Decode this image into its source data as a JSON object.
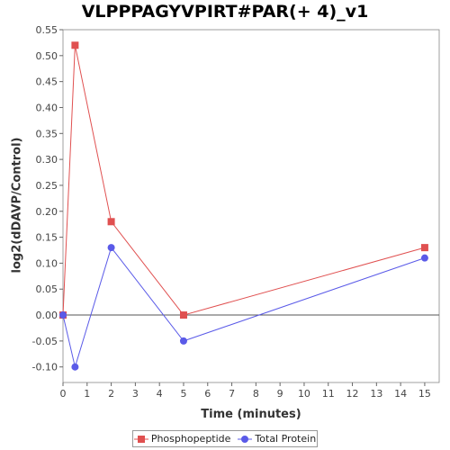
{
  "chart_data": {
    "type": "line",
    "title": "VLPPPAGYVPIRT#PAR(+ 4)_v1",
    "xlabel": "Time (minutes)",
    "ylabel": "log2(dDAVP/Control)",
    "x_ticks": [
      0,
      1,
      2,
      3,
      4,
      5,
      6,
      7,
      8,
      9,
      10,
      11,
      12,
      13,
      14,
      15
    ],
    "y_ticks": [
      "-0.10",
      "-0.05",
      "0.00",
      "0.05",
      "0.10",
      "0.15",
      "0.20",
      "0.25",
      "0.30",
      "0.35",
      "0.40",
      "0.45",
      "0.50",
      "0.55"
    ],
    "xlim": [
      0,
      15.6
    ],
    "ylim": [
      -0.13,
      0.55
    ],
    "grid": false,
    "zero_line": true,
    "legend_position": "bottom",
    "series": [
      {
        "name": "Phosphopeptide",
        "marker": "square",
        "color": "#e05050",
        "x": [
          0,
          0.5,
          2,
          5,
          15
        ],
        "y": [
          0,
          0.52,
          0.18,
          0,
          0.13
        ]
      },
      {
        "name": "Total Protein",
        "marker": "circle",
        "color": "#5a5ae8",
        "x": [
          0,
          0.5,
          2,
          5,
          15
        ],
        "y": [
          0,
          -0.1,
          0.13,
          -0.05,
          0.11
        ]
      }
    ]
  }
}
